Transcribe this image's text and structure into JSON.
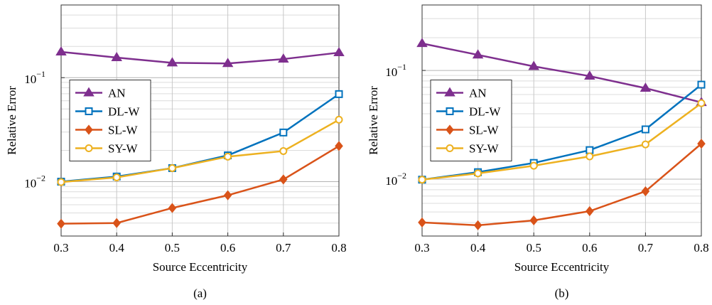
{
  "chart_data": [
    {
      "type": "line",
      "caption": "(a)",
      "x_label": "Source Eccentricity",
      "y_label": "Relative Error",
      "x": [
        0.3,
        0.4,
        0.5,
        0.6,
        0.7,
        0.8
      ],
      "xlim": [
        0.3,
        0.8
      ],
      "xticks": [
        0.3,
        0.4,
        0.5,
        0.6,
        0.7,
        0.8
      ],
      "ylim": [
        0.003,
        0.5
      ],
      "log_y": true,
      "grid": true,
      "legend": "center left",
      "yticks": [
        {
          "value": 0.01,
          "label": "10",
          "exponent": "−2"
        },
        {
          "value": 0.1,
          "label": "10",
          "exponent": "−1"
        }
      ],
      "series": [
        {
          "name": "AN",
          "color": "#7e2f8e",
          "marker": "triangle",
          "values": [
            0.177,
            0.156,
            0.139,
            0.137,
            0.151,
            0.174
          ]
        },
        {
          "name": "DL-W",
          "color": "#0072bd",
          "marker": "square",
          "values": [
            0.01,
            0.0112,
            0.0135,
            0.0179,
            0.0297,
            0.0695
          ]
        },
        {
          "name": "SL-W",
          "color": "#d95319",
          "marker": "diamond",
          "values": [
            0.00394,
            0.004,
            0.00558,
            0.0074,
            0.0105,
            0.022
          ]
        },
        {
          "name": "SY-W",
          "color": "#edb120",
          "marker": "circle",
          "values": [
            0.0099,
            0.011,
            0.0135,
            0.0174,
            0.0197,
            0.0394
          ]
        }
      ]
    },
    {
      "type": "line",
      "caption": "(b)",
      "x_label": "Source Eccentricity",
      "y_label": "Relative Error",
      "x": [
        0.3,
        0.4,
        0.5,
        0.6,
        0.7,
        0.8
      ],
      "xlim": [
        0.3,
        0.8
      ],
      "xticks": [
        0.3,
        0.4,
        0.5,
        0.6,
        0.7,
        0.8
      ],
      "ylim": [
        0.003,
        0.4
      ],
      "log_y": true,
      "grid": true,
      "legend": "center left",
      "yticks": [
        {
          "value": 0.01,
          "label": "10",
          "exponent": "−2"
        },
        {
          "value": 0.1,
          "label": "10",
          "exponent": "−1"
        }
      ],
      "series": [
        {
          "name": "AN",
          "color": "#7e2f8e",
          "marker": "triangle",
          "values": [
            0.177,
            0.139,
            0.109,
            0.0887,
            0.0687,
            0.0508
          ]
        },
        {
          "name": "DL-W",
          "color": "#0072bd",
          "marker": "square",
          "values": [
            0.0099,
            0.0116,
            0.0141,
            0.0185,
            0.0287,
            0.074
          ]
        },
        {
          "name": "SL-W",
          "color": "#d95319",
          "marker": "diamond",
          "values": [
            0.004,
            0.00377,
            0.00418,
            0.00508,
            0.00774,
            0.0212
          ]
        },
        {
          "name": "SY-W",
          "color": "#edb120",
          "marker": "circle",
          "values": [
            0.0099,
            0.0113,
            0.0133,
            0.0162,
            0.0209,
            0.05
          ]
        }
      ]
    }
  ]
}
